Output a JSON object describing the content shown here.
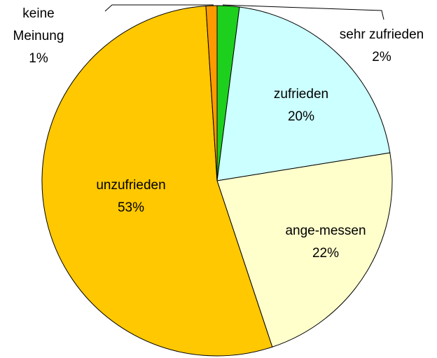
{
  "chart_data": {
    "type": "pie",
    "categories": [
      "sehr zufrieden",
      "zufrieden",
      "ange-messen",
      "unzufrieden",
      "keine Meinung"
    ],
    "values": [
      2,
      20,
      22,
      53,
      1
    ],
    "value_labels": [
      "2%",
      "20%",
      "22%",
      "53%",
      "1%"
    ],
    "colors": [
      "#1ed01e",
      "#ccffff",
      "#ffffcc",
      "#ffc800",
      "#ff9900"
    ]
  }
}
